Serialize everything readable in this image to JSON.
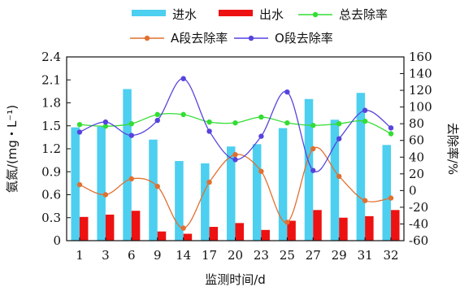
{
  "chart_data": {
    "type": "bar",
    "categories": [
      "1",
      "3",
      "6",
      "9",
      "14",
      "17",
      "20",
      "23",
      "25",
      "27",
      "29",
      "31",
      "32"
    ],
    "xlabel": "监测时间/d",
    "ylabel": "氨氮/(mg・L⁻¹)",
    "y2label": "去除率/%",
    "ylim": [
      0,
      2.4
    ],
    "y2lim": [
      -60,
      160
    ],
    "yticks": [
      "0",
      "0.3",
      "0.6",
      "0.9",
      "1.2",
      "1.5",
      "1.8",
      "2.1",
      "2.4"
    ],
    "y2ticks": [
      "-60",
      "-40",
      "-20",
      "0",
      "20",
      "40",
      "60",
      "80",
      "100",
      "120",
      "140",
      "160"
    ],
    "bar_series": [
      {
        "name": "进水",
        "color": "#4DCFF0",
        "values": [
          1.48,
          1.49,
          1.98,
          1.32,
          1.04,
          1.01,
          1.23,
          1.26,
          1.47,
          1.85,
          1.58,
          1.93,
          1.25
        ]
      },
      {
        "name": "出水",
        "color": "#EE1111",
        "values": [
          0.31,
          0.34,
          0.39,
          0.12,
          0.09,
          0.18,
          0.23,
          0.14,
          0.26,
          0.4,
          0.3,
          0.32,
          0.4
        ]
      }
    ],
    "line_series": [
      {
        "name": "总去除率",
        "color": "#33DD33",
        "marker": "circle",
        "values": [
          79,
          77,
          80,
          91,
          91,
          82,
          81,
          88,
          81,
          78,
          80,
          83,
          68
        ]
      },
      {
        "name": "A段去除率",
        "color": "#E07030",
        "marker": "circle",
        "values": [
          7,
          -5,
          14,
          5,
          -45,
          10,
          43,
          23,
          -38,
          50,
          17,
          -12,
          -9
        ]
      },
      {
        "name": "O段去除率",
        "color": "#5544DD",
        "marker": "circle",
        "values": [
          70,
          82,
          66,
          84,
          134,
          71,
          37,
          65,
          118,
          24,
          62,
          96,
          75
        ]
      }
    ],
    "legend_placement": "top",
    "grid": false
  }
}
